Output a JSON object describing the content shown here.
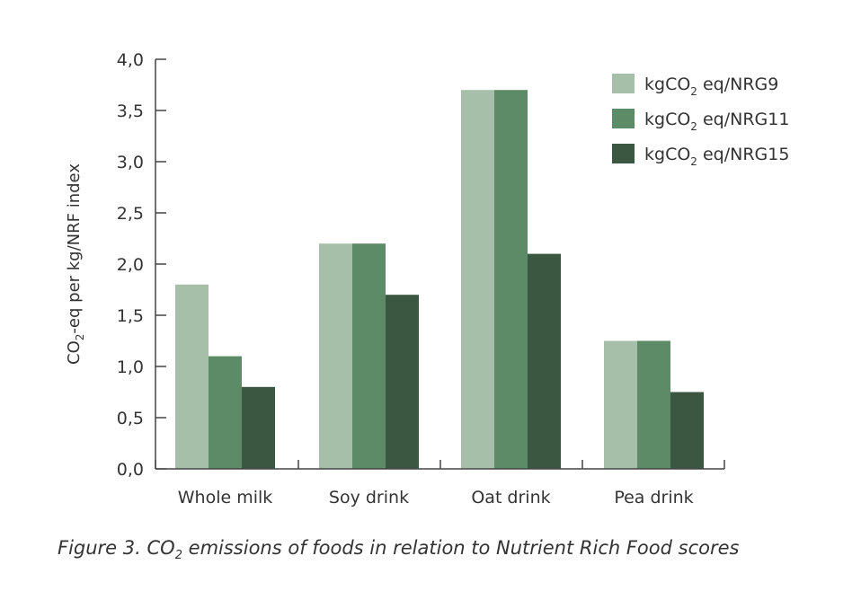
{
  "chart_data": {
    "type": "bar",
    "categories": [
      "Whole milk",
      "Soy drink",
      "Oat drink",
      "Pea drink"
    ],
    "series": [
      {
        "name": "kgCO2 eq/NRG9",
        "name_parts": [
          "kgCO",
          "2",
          " eq/NRG9"
        ],
        "color": "#a6bfa9",
        "values": [
          1.8,
          2.2,
          3.7,
          1.25
        ]
      },
      {
        "name": "kgCO2 eq/NRG11",
        "name_parts": [
          "kgCO",
          "2",
          " eq/NRG11"
        ],
        "color": "#5d8a67",
        "values": [
          1.1,
          2.2,
          3.7,
          1.25
        ]
      },
      {
        "name": "kgCO2 eq/NRG15",
        "name_parts": [
          "kgCO",
          "2",
          " eq/NRG15"
        ],
        "color": "#3b5641",
        "values": [
          0.8,
          1.7,
          2.1,
          0.75
        ]
      }
    ],
    "ylim": [
      0,
      4.0
    ],
    "yticks": [
      0,
      0.5,
      1.0,
      1.5,
      2.0,
      2.5,
      3.0,
      3.5,
      4.0
    ],
    "ytick_labels": [
      "0,0",
      "0,5",
      "1,0",
      "1,5",
      "2,0",
      "2,5",
      "3,0",
      "3,5",
      "4,0"
    ],
    "ylabel": "CO2-eq per kg/NRF index",
    "ylabel_parts": [
      "CO",
      "2",
      "-eq per kg/NRF index"
    ],
    "xlabel": "",
    "grid": false,
    "legend_position": "top-right"
  },
  "caption": {
    "text": "Figure 3. CO2 emissions of foods in relation to Nutrient Rich Food scores",
    "before": "Figure 3. CO",
    "sub": "2",
    "after": " emissions of foods in relation to Nutrient Rich Food scores"
  }
}
